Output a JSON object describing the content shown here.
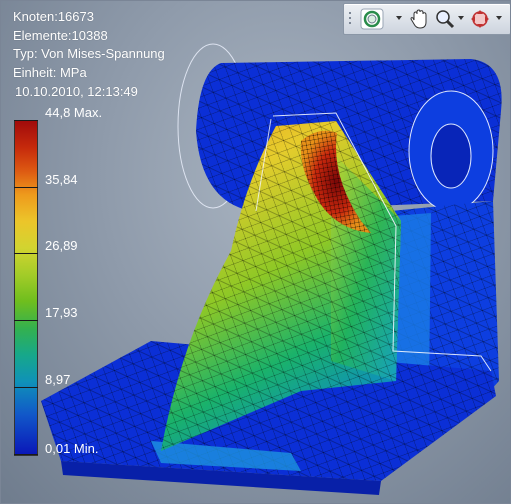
{
  "info": {
    "nodes": "Knoten:16673",
    "elements": "Elemente:10388",
    "type": "Typ: Von Mises-Spannung",
    "unit": "Einheit: MPa",
    "timestamp": "10.10.2010, 12:13:49"
  },
  "legend": {
    "labels": [
      "44,8 Max.",
      "35,84",
      "26,89",
      "17,93",
      "8,97",
      "0,01 Min."
    ],
    "colors": {
      "max": "#a10b0b",
      "min": "#0a16b8"
    }
  },
  "toolbar": {
    "icons": [
      "orbit-icon",
      "pan-icon",
      "zoom-icon",
      "navigate-icon"
    ]
  }
}
